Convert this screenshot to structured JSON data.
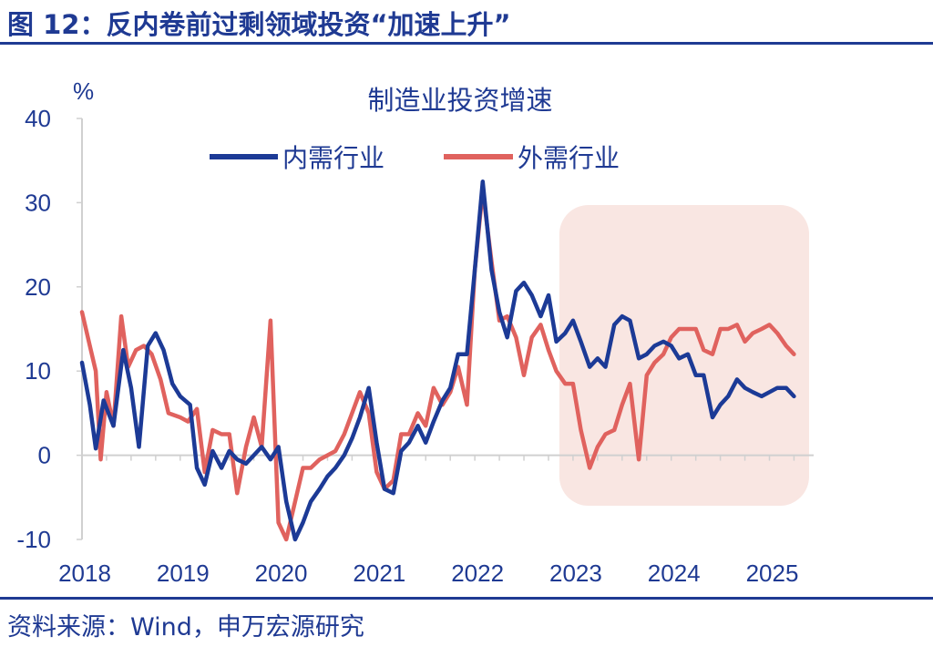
{
  "header": {
    "figure_title": "图 12：反内卷前过剩领域投资“加速上升”"
  },
  "footer": {
    "source": "资料来源：Wind，申万宏源研究"
  },
  "colors": {
    "accent": "#1f3a93",
    "domestic": "#1c3a96",
    "external": "#e0625e",
    "highlight": "#f9e6e2"
  },
  "chart_data": {
    "type": "line",
    "title": "制造业投资增速",
    "ylabel": "%",
    "xlabel": "",
    "ylim": [
      -10,
      40
    ],
    "yticks": [
      -10,
      0,
      10,
      20,
      30,
      40
    ],
    "xlim": [
      2018.0,
      2025.45
    ],
    "year_ticks": [
      "2018",
      "2019",
      "2020",
      "2021",
      "2022",
      "2023",
      "2024",
      "2025"
    ],
    "highlight_x_range": [
      2023.0,
      2025.45
    ],
    "legend_position": "top",
    "series": [
      {
        "name": "内需行业",
        "color": "#1c3a96",
        "points": [
          [
            2018.0,
            11.0
          ],
          [
            2018.08,
            6.0
          ],
          [
            2018.14,
            0.8
          ],
          [
            2018.22,
            6.5
          ],
          [
            2018.32,
            3.5
          ],
          [
            2018.42,
            12.5
          ],
          [
            2018.5,
            8.0
          ],
          [
            2018.58,
            1.0
          ],
          [
            2018.67,
            13.0
          ],
          [
            2018.75,
            14.5
          ],
          [
            2018.83,
            12.5
          ],
          [
            2018.92,
            8.5
          ],
          [
            2019.0,
            7.0
          ],
          [
            2019.1,
            6.0
          ],
          [
            2019.17,
            -1.5
          ],
          [
            2019.25,
            -3.5
          ],
          [
            2019.33,
            0.5
          ],
          [
            2019.42,
            -1.5
          ],
          [
            2019.5,
            0.5
          ],
          [
            2019.58,
            -0.5
          ],
          [
            2019.67,
            -1.0
          ],
          [
            2019.75,
            0.0
          ],
          [
            2019.83,
            1.0
          ],
          [
            2019.92,
            -0.5
          ],
          [
            2020.0,
            1.0
          ],
          [
            2020.08,
            -5.5
          ],
          [
            2020.17,
            -10.5
          ],
          [
            2020.25,
            -8.0
          ],
          [
            2020.33,
            -5.5
          ],
          [
            2020.42,
            -4.0
          ],
          [
            2020.5,
            -2.5
          ],
          [
            2020.58,
            -1.5
          ],
          [
            2020.67,
            0.0
          ],
          [
            2020.75,
            2.0
          ],
          [
            2020.83,
            4.5
          ],
          [
            2020.92,
            8.0
          ],
          [
            2021.0,
            1.5
          ],
          [
            2021.08,
            -4.0
          ],
          [
            2021.17,
            -4.5
          ],
          [
            2021.25,
            0.5
          ],
          [
            2021.33,
            1.5
          ],
          [
            2021.42,
            3.5
          ],
          [
            2021.5,
            1.5
          ],
          [
            2021.58,
            4.0
          ],
          [
            2021.67,
            6.5
          ],
          [
            2021.75,
            8.0
          ],
          [
            2021.83,
            12.0
          ],
          [
            2021.92,
            12.0
          ],
          [
            2022.0,
            22.0
          ],
          [
            2022.08,
            32.5
          ],
          [
            2022.17,
            22.0
          ],
          [
            2022.25,
            17.0
          ],
          [
            2022.33,
            14.0
          ],
          [
            2022.42,
            19.5
          ],
          [
            2022.5,
            20.5
          ],
          [
            2022.58,
            19.0
          ],
          [
            2022.67,
            16.5
          ],
          [
            2022.75,
            19.0
          ],
          [
            2022.83,
            13.5
          ],
          [
            2022.92,
            14.5
          ],
          [
            2023.0,
            16.0
          ],
          [
            2023.08,
            13.5
          ],
          [
            2023.17,
            10.5
          ],
          [
            2023.25,
            11.5
          ],
          [
            2023.33,
            10.5
          ],
          [
            2023.42,
            15.5
          ],
          [
            2023.5,
            16.5
          ],
          [
            2023.58,
            16.0
          ],
          [
            2023.67,
            11.5
          ],
          [
            2023.75,
            12.0
          ],
          [
            2023.83,
            13.0
          ],
          [
            2023.92,
            13.5
          ],
          [
            2024.0,
            13.0
          ],
          [
            2024.08,
            11.5
          ],
          [
            2024.17,
            12.0
          ],
          [
            2024.25,
            9.5
          ],
          [
            2024.33,
            9.5
          ],
          [
            2024.42,
            4.5
          ],
          [
            2024.5,
            6.0
          ],
          [
            2024.58,
            7.0
          ],
          [
            2024.67,
            9.0
          ],
          [
            2024.75,
            8.0
          ],
          [
            2024.83,
            7.5
          ],
          [
            2024.92,
            7.0
          ],
          [
            2025.0,
            7.5
          ],
          [
            2025.08,
            8.0
          ],
          [
            2025.17,
            8.0
          ],
          [
            2025.25,
            7.0
          ]
        ]
      },
      {
        "name": "外需行业",
        "color": "#e0625e",
        "points": [
          [
            2018.0,
            17.0
          ],
          [
            2018.08,
            13.0
          ],
          [
            2018.14,
            10.0
          ],
          [
            2018.19,
            -0.5
          ],
          [
            2018.25,
            7.5
          ],
          [
            2018.32,
            3.5
          ],
          [
            2018.4,
            16.5
          ],
          [
            2018.47,
            10.5
          ],
          [
            2018.55,
            12.5
          ],
          [
            2018.63,
            13.0
          ],
          [
            2018.71,
            12.0
          ],
          [
            2018.8,
            9.0
          ],
          [
            2018.88,
            5.0
          ],
          [
            2019.0,
            4.5
          ],
          [
            2019.08,
            4.0
          ],
          [
            2019.17,
            5.5
          ],
          [
            2019.25,
            -2.0
          ],
          [
            2019.33,
            3.0
          ],
          [
            2019.42,
            2.5
          ],
          [
            2019.5,
            2.5
          ],
          [
            2019.58,
            -4.5
          ],
          [
            2019.67,
            1.0
          ],
          [
            2019.75,
            4.5
          ],
          [
            2019.83,
            1.0
          ],
          [
            2019.92,
            16.0
          ],
          [
            2020.0,
            -8.0
          ],
          [
            2020.08,
            -10.5
          ],
          [
            2020.17,
            -5.5
          ],
          [
            2020.25,
            -1.5
          ],
          [
            2020.33,
            -1.5
          ],
          [
            2020.42,
            -0.5
          ],
          [
            2020.5,
            0.0
          ],
          [
            2020.58,
            0.5
          ],
          [
            2020.67,
            2.5
          ],
          [
            2020.75,
            5.0
          ],
          [
            2020.83,
            7.5
          ],
          [
            2020.92,
            5.0
          ],
          [
            2021.0,
            -2.0
          ],
          [
            2021.08,
            -4.0
          ],
          [
            2021.17,
            -3.0
          ],
          [
            2021.25,
            2.5
          ],
          [
            2021.33,
            2.5
          ],
          [
            2021.42,
            5.0
          ],
          [
            2021.5,
            3.5
          ],
          [
            2021.58,
            8.0
          ],
          [
            2021.67,
            6.0
          ],
          [
            2021.75,
            7.5
          ],
          [
            2021.83,
            10.5
          ],
          [
            2021.92,
            6.0
          ],
          [
            2022.0,
            22.0
          ],
          [
            2022.08,
            31.5
          ],
          [
            2022.17,
            23.0
          ],
          [
            2022.25,
            16.0
          ],
          [
            2022.33,
            16.5
          ],
          [
            2022.42,
            14.0
          ],
          [
            2022.5,
            9.5
          ],
          [
            2022.58,
            14.0
          ],
          [
            2022.67,
            15.5
          ],
          [
            2022.75,
            12.5
          ],
          [
            2022.83,
            10.0
          ],
          [
            2022.92,
            8.5
          ],
          [
            2023.0,
            8.5
          ],
          [
            2023.08,
            3.0
          ],
          [
            2023.17,
            -1.5
          ],
          [
            2023.25,
            1.0
          ],
          [
            2023.33,
            2.5
          ],
          [
            2023.42,
            3.0
          ],
          [
            2023.5,
            6.0
          ],
          [
            2023.58,
            8.5
          ],
          [
            2023.67,
            -0.5
          ],
          [
            2023.75,
            9.5
          ],
          [
            2023.83,
            11.0
          ],
          [
            2023.92,
            12.0
          ],
          [
            2024.0,
            14.0
          ],
          [
            2024.08,
            15.0
          ],
          [
            2024.17,
            15.0
          ],
          [
            2024.25,
            15.0
          ],
          [
            2024.33,
            12.5
          ],
          [
            2024.42,
            12.0
          ],
          [
            2024.5,
            15.0
          ],
          [
            2024.58,
            15.0
          ],
          [
            2024.67,
            15.5
          ],
          [
            2024.75,
            13.5
          ],
          [
            2024.83,
            14.5
          ],
          [
            2024.92,
            15.0
          ],
          [
            2025.0,
            15.5
          ],
          [
            2025.08,
            14.5
          ],
          [
            2025.17,
            13.0
          ],
          [
            2025.25,
            12.0
          ]
        ]
      }
    ]
  }
}
